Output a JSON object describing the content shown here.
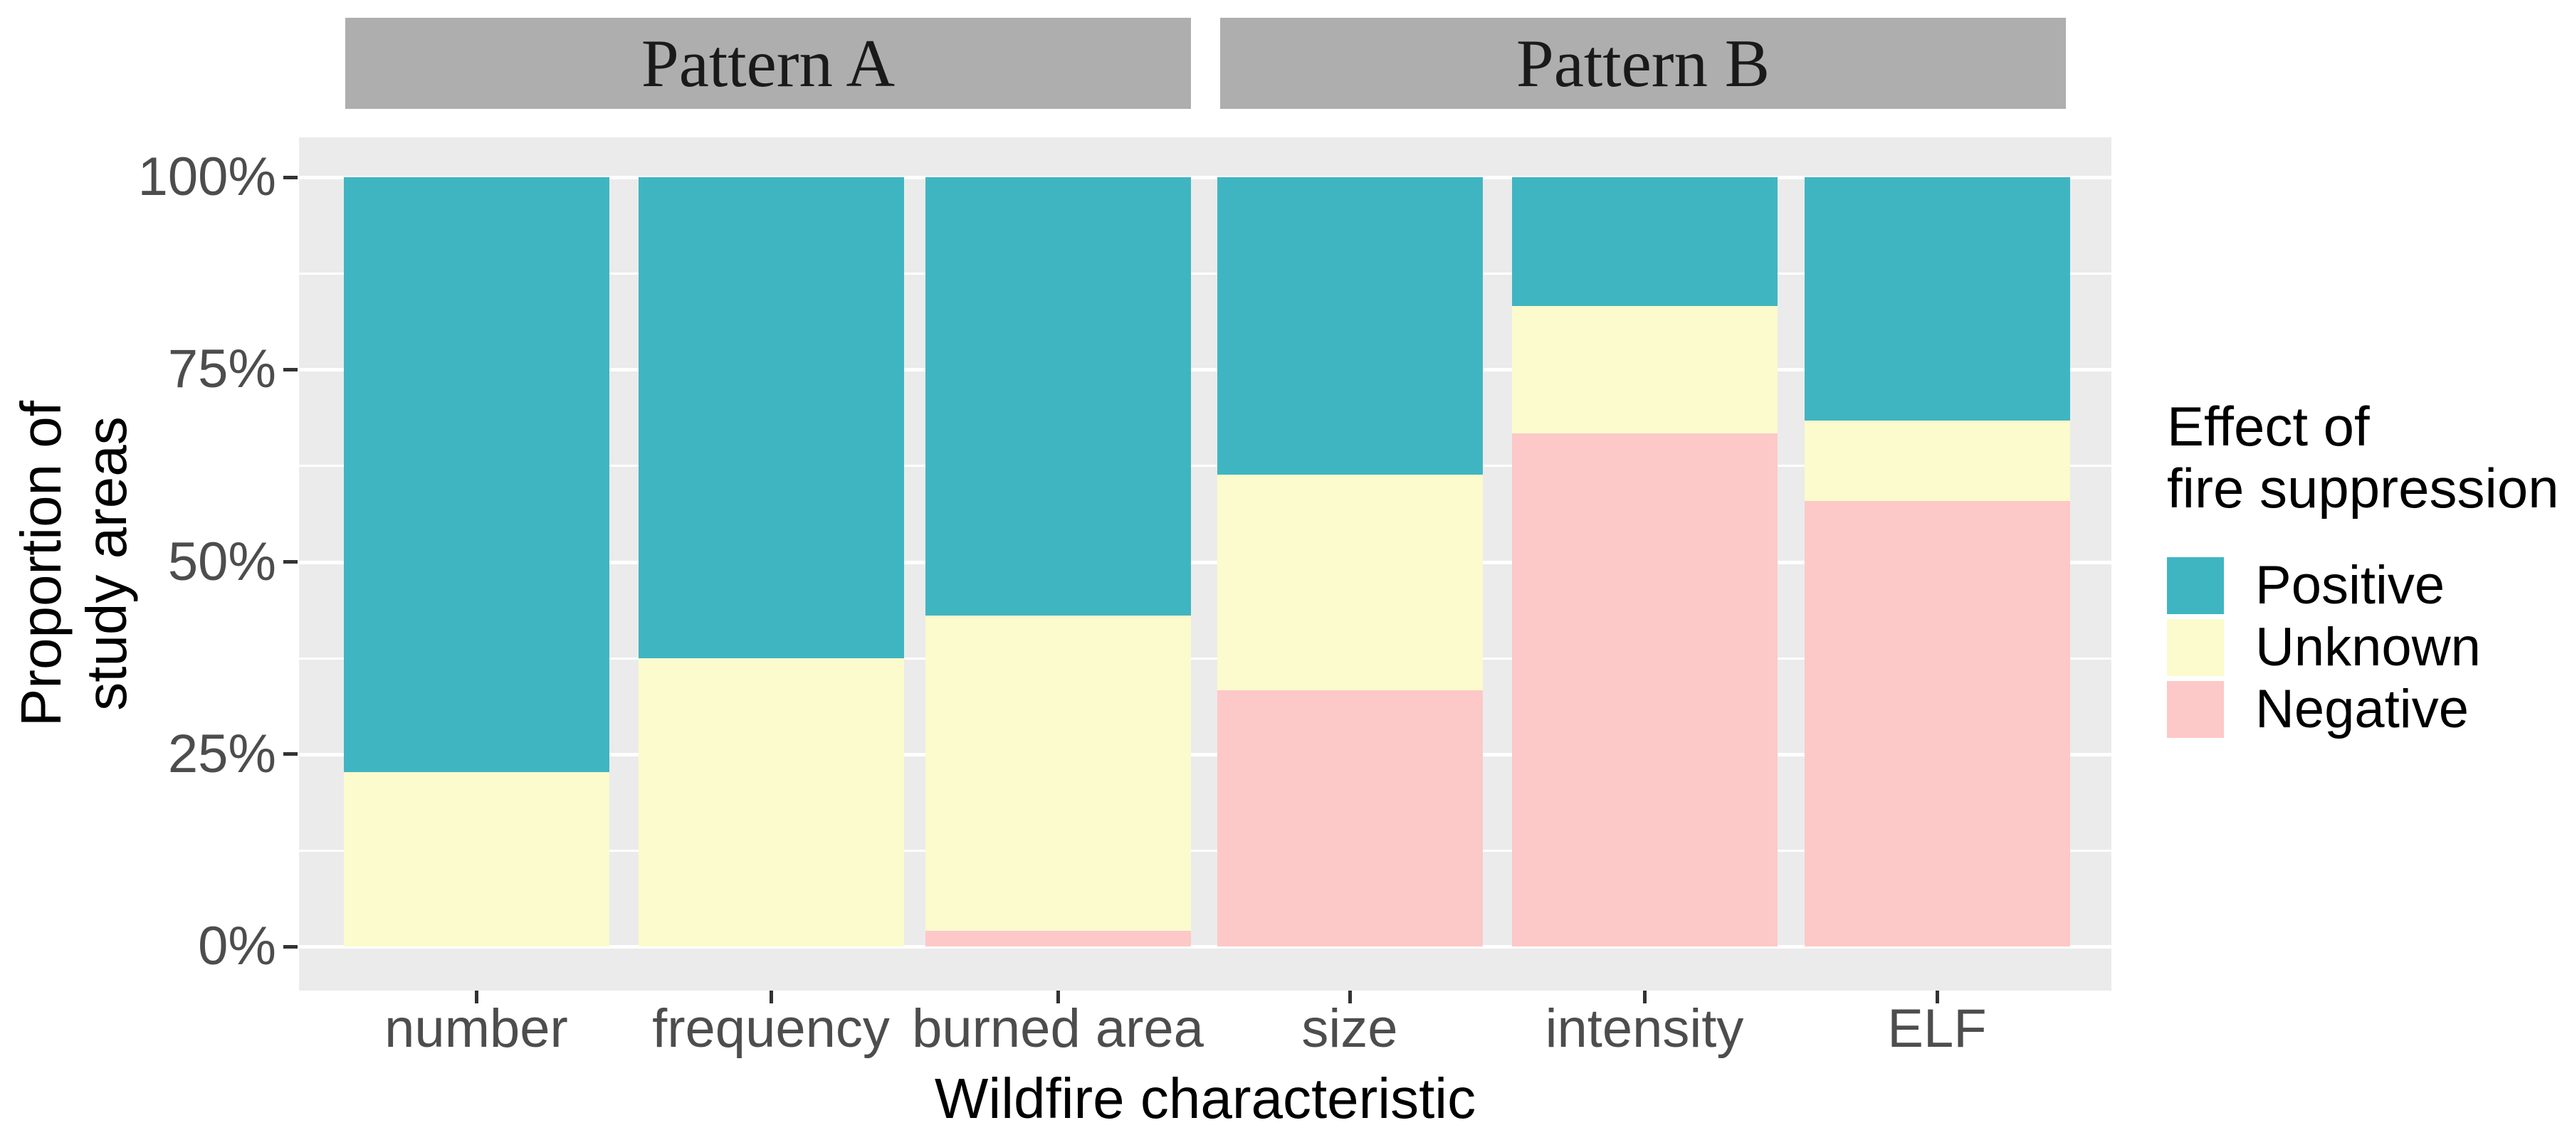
{
  "figure_title": "",
  "facets": [
    {
      "label": "Pattern A",
      "categories": [
        "number",
        "frequency",
        "burned area"
      ]
    },
    {
      "label": "Pattern B",
      "categories": [
        "size",
        "intensity",
        "ELF"
      ]
    }
  ],
  "y_axis": {
    "title_lines": [
      "Proportion of",
      "study areas"
    ],
    "tick_labels": [
      "100%",
      "75%",
      "50%",
      "25%",
      "0%"
    ],
    "tick_values": [
      100,
      75,
      50,
      25,
      0
    ],
    "minor_tick_values": [
      87.5,
      62.5,
      37.5,
      12.5
    ]
  },
  "x_axis": {
    "title": "Wildfire characteristic",
    "categories": [
      "number",
      "frequency",
      "burned area",
      "size",
      "intensity",
      "ELF"
    ]
  },
  "legend": {
    "title_lines": [
      "Effect of",
      "fire suppression"
    ],
    "entries": [
      {
        "label": "Positive",
        "color": "#40B5C2"
      },
      {
        "label": "Unknown",
        "color": "#FBFBCD"
      },
      {
        "label": "Negative",
        "color": "#FDC8C8"
      }
    ]
  },
  "colors": {
    "panel_background": "#EBEBEB",
    "strip_background": "#AEAEAE",
    "gridline": "#FFFFFF",
    "axis_text": "#4D4D4D",
    "tick_mark": "#333333"
  },
  "chart_data": {
    "type": "bar",
    "stacked": true,
    "units": "percent",
    "title": "",
    "xlabel": "Wildfire characteristic",
    "ylabel": "Proportion of study areas",
    "ylim": [
      0,
      100
    ],
    "grid": true,
    "legend_position": "right",
    "categories": [
      "number",
      "frequency",
      "burned area",
      "size",
      "intensity",
      "ELF"
    ],
    "facet_of_category": [
      "Pattern A",
      "Pattern A",
      "Pattern A",
      "Pattern B",
      "Pattern B",
      "Pattern B"
    ],
    "series": [
      {
        "name": "Positive",
        "values": [
          77.3,
          62.5,
          57.0,
          38.7,
          16.7,
          31.6
        ]
      },
      {
        "name": "Unknown",
        "values": [
          22.7,
          37.5,
          41.0,
          28.0,
          16.6,
          10.5
        ]
      },
      {
        "name": "Negative",
        "values": [
          0.0,
          0.0,
          2.0,
          33.3,
          66.7,
          57.9
        ]
      }
    ]
  }
}
